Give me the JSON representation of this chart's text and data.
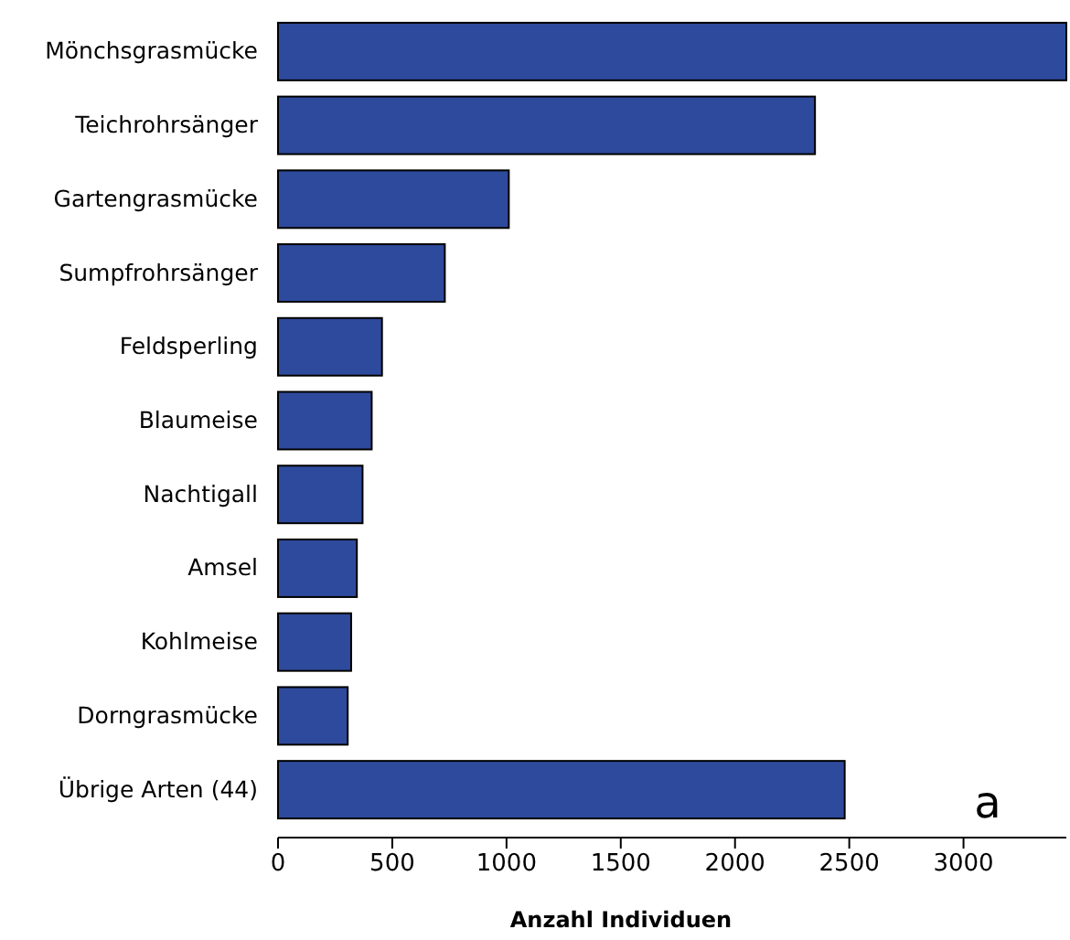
{
  "chart_data": {
    "type": "bar",
    "orientation": "horizontal",
    "xlabel": "Anzahl Individuen",
    "categories": [
      "Mönchsgrasmücke",
      "Teichrohrsänger",
      "Gartengrasmücke",
      "Sumpfrohrsänger",
      "Feldsperling",
      "Blaumeise",
      "Nachtigall",
      "Amsel",
      "Kohlmeise",
      "Dorngrasmücke",
      "Übrige Arten (44)"
    ],
    "values": [
      3450,
      2350,
      1010,
      730,
      455,
      410,
      370,
      345,
      320,
      305,
      2480
    ],
    "color": "#2e4a9c",
    "xlim": [
      0,
      3450
    ],
    "xticks": [
      0,
      500,
      1000,
      1500,
      2000,
      2500,
      3000
    ],
    "annotations": [
      "a"
    ]
  }
}
